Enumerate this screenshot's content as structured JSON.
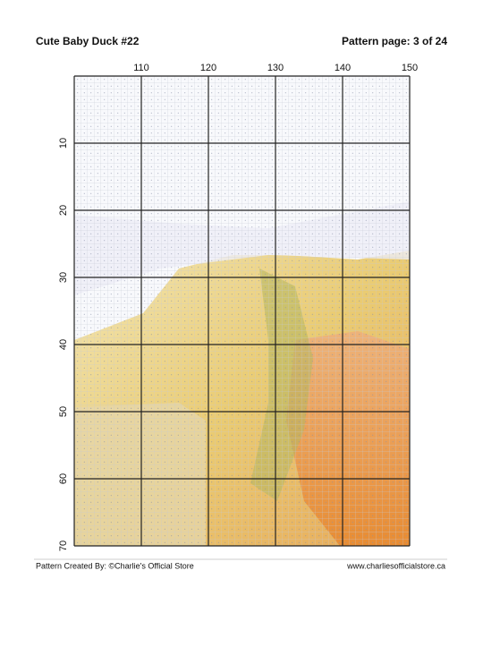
{
  "header": {
    "title": "Cute Baby Duck #22",
    "page": "Pattern page: 3 of 24"
  },
  "grid": {
    "column_labels": [
      "110",
      "120",
      "130",
      "140",
      "150"
    ],
    "row_labels": [
      "10",
      "20",
      "30",
      "40",
      "50",
      "60",
      "70"
    ]
  },
  "footer": {
    "credit": "Pattern Created By: ©Charlie's Official Store",
    "website": "www.charliesofficialstore.ca"
  }
}
